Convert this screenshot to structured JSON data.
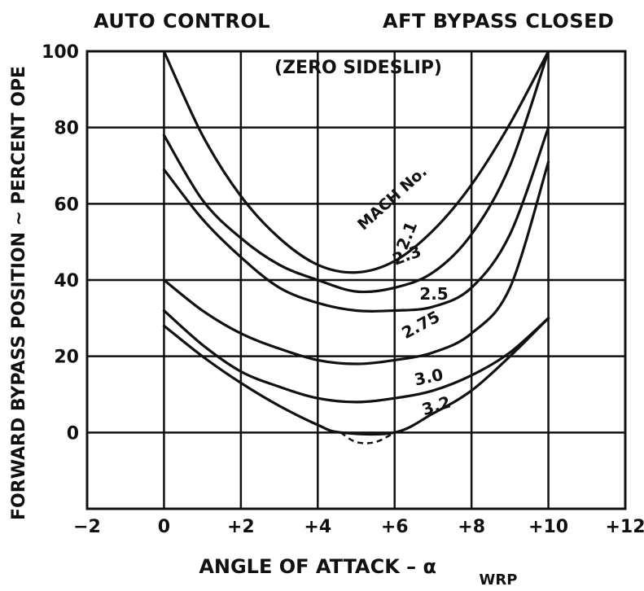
{
  "header": {
    "left": "AUTO CONTROL",
    "right": "AFT BYPASS CLOSED"
  },
  "chart_data": {
    "type": "line",
    "subtitle": "(ZERO SIDESLIP)",
    "xlabel": "ANGLE OF ATTACK – α",
    "xlabel_subscript": "WRP",
    "ylabel": "FORWARD BYPASS POSITION ∼ PERCENT OPE",
    "xlim": [
      -2,
      12
    ],
    "ylim": [
      -20,
      100
    ],
    "xticks": [
      -2,
      0,
      2,
      4,
      6,
      8,
      10,
      12
    ],
    "xtick_labels": [
      "−2",
      "0",
      "+2",
      "+4",
      "+6",
      "+8",
      "+10",
      "+12"
    ],
    "yticks": [
      0,
      20,
      40,
      60,
      80,
      100
    ],
    "ytick_labels": [
      "0",
      "20",
      "40",
      "60",
      "80",
      "100"
    ],
    "grid": true,
    "legend_title": "MACH No.",
    "series": [
      {
        "name": "2.1",
        "x": [
          0,
          1,
          2,
          3,
          4,
          5,
          6,
          7,
          8,
          9,
          10
        ],
        "y": [
          100,
          78,
          62,
          51,
          44,
          42,
          45,
          53,
          65,
          81,
          100
        ]
      },
      {
        "name": "2.3",
        "x": [
          0,
          1,
          2,
          3,
          4,
          5,
          6,
          7,
          8,
          9,
          10
        ],
        "y": [
          78,
          61,
          51,
          44,
          40,
          37,
          38,
          42,
          52,
          70,
          100
        ]
      },
      {
        "name": "2.5",
        "x": [
          0,
          1,
          2,
          3,
          4,
          5,
          6,
          7,
          8,
          9,
          10
        ],
        "y": [
          69,
          56,
          46,
          38,
          34,
          32,
          32,
          33,
          38,
          52,
          80
        ]
      },
      {
        "name": "2.75",
        "x": [
          0,
          1,
          2,
          3,
          4,
          5,
          6,
          7,
          8,
          9,
          10
        ],
        "y": [
          40,
          32,
          26,
          22,
          19,
          18,
          19,
          21,
          26,
          38,
          71
        ]
      },
      {
        "name": "3.0",
        "x": [
          0,
          1,
          2,
          3,
          4,
          5,
          6,
          7,
          8,
          9,
          10
        ],
        "y": [
          32,
          23,
          16,
          12,
          9,
          8,
          9,
          11,
          15,
          21,
          30
        ]
      },
      {
        "name": "3.2",
        "x": [
          0,
          1,
          2,
          3,
          4,
          4.6,
          6,
          7,
          8,
          9,
          10
        ],
        "y": [
          28,
          20,
          13,
          7,
          2,
          0,
          0,
          5,
          11,
          20,
          30
        ]
      }
    ],
    "dashed_segment": {
      "series": "3.2",
      "x": [
        4.6,
        5.0,
        5.5,
        6.0
      ],
      "y": [
        0,
        -2.5,
        -2.5,
        0
      ]
    }
  }
}
